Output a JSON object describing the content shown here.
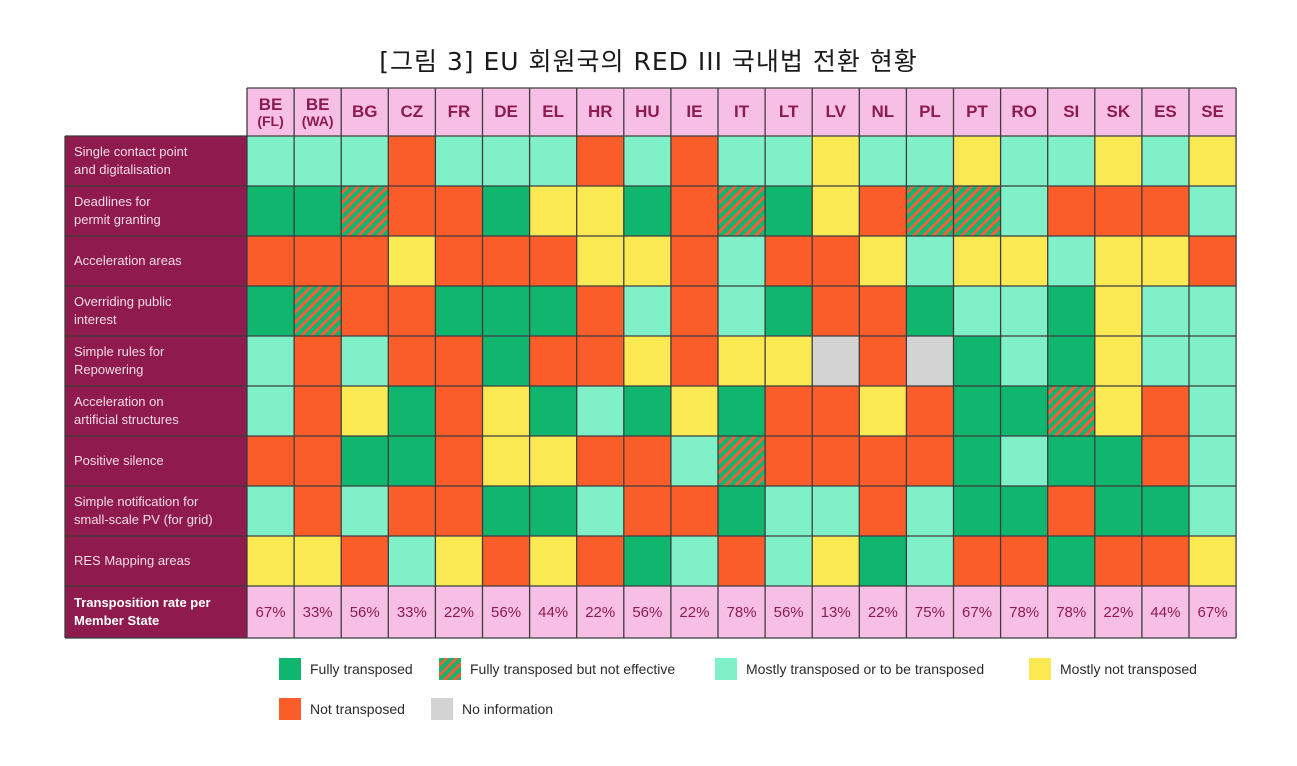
{
  "title": "[그림 3] EU 회원국의 RED III 국내법 전환 현황",
  "colors": {
    "F": "#10b56e",
    "H": "#10b56e",
    "M": "#7ff0c8",
    "Y": "#fbe954",
    "N": "#fa5c2a",
    "G": "#d3d3d3",
    "header_bg": "#f8bfe6",
    "header_text": "#8c1b50",
    "row_label_bg": "#8e1a4e",
    "border": "#3d3d3d"
  },
  "chart_data": {
    "type": "table",
    "title": "[그림 3] EU 회원국의 RED III 국내법 전환 현황",
    "columns": [
      {
        "code": "BE",
        "sub": "(FL)"
      },
      {
        "code": "BE",
        "sub": "(WA)"
      },
      {
        "code": "BG",
        "sub": ""
      },
      {
        "code": "CZ",
        "sub": ""
      },
      {
        "code": "FR",
        "sub": ""
      },
      {
        "code": "DE",
        "sub": ""
      },
      {
        "code": "EL",
        "sub": ""
      },
      {
        "code": "HR",
        "sub": ""
      },
      {
        "code": "HU",
        "sub": ""
      },
      {
        "code": "IE",
        "sub": ""
      },
      {
        "code": "IT",
        "sub": ""
      },
      {
        "code": "LT",
        "sub": ""
      },
      {
        "code": "LV",
        "sub": ""
      },
      {
        "code": "NL",
        "sub": ""
      },
      {
        "code": "PL",
        "sub": ""
      },
      {
        "code": "PT",
        "sub": ""
      },
      {
        "code": "RO",
        "sub": ""
      },
      {
        "code": "SI",
        "sub": ""
      },
      {
        "code": "SK",
        "sub": ""
      },
      {
        "code": "ES",
        "sub": ""
      },
      {
        "code": "SE",
        "sub": ""
      }
    ],
    "status_key": {
      "F": "Fully transposed",
      "H": "Fully transposed but not effective",
      "M": "Mostly transposed or to be transposed",
      "Y": "Mostly not transposed",
      "N": "Not transposed",
      "G": "No information"
    },
    "rows": [
      {
        "label": [
          "Single contact point",
          "and digitalisation"
        ],
        "status": [
          "M",
          "M",
          "M",
          "N",
          "M",
          "M",
          "M",
          "N",
          "M",
          "N",
          "M",
          "M",
          "Y",
          "M",
          "M",
          "Y",
          "M",
          "M",
          "Y",
          "M",
          "Y"
        ]
      },
      {
        "label": [
          "Deadlines for",
          "permit granting"
        ],
        "status": [
          "F",
          "F",
          "H",
          "N",
          "N",
          "F",
          "Y",
          "Y",
          "F",
          "N",
          "H",
          "F",
          "Y",
          "N",
          "H",
          "H",
          "M",
          "N",
          "N",
          "N",
          "M"
        ]
      },
      {
        "label": [
          "Acceleration areas"
        ],
        "status": [
          "N",
          "N",
          "N",
          "Y",
          "N",
          "N",
          "N",
          "Y",
          "Y",
          "N",
          "M",
          "N",
          "N",
          "Y",
          "M",
          "Y",
          "Y",
          "M",
          "Y",
          "Y",
          "N"
        ]
      },
      {
        "label": [
          "Overriding public",
          "interest"
        ],
        "status": [
          "F",
          "H",
          "N",
          "N",
          "F",
          "F",
          "F",
          "N",
          "M",
          "N",
          "M",
          "F",
          "N",
          "N",
          "F",
          "M",
          "M",
          "F",
          "Y",
          "M",
          "M"
        ]
      },
      {
        "label": [
          "Simple rules for",
          "Repowering"
        ],
        "status": [
          "M",
          "N",
          "M",
          "N",
          "N",
          "F",
          "N",
          "N",
          "Y",
          "N",
          "Y",
          "Y",
          "G",
          "N",
          "G",
          "F",
          "M",
          "F",
          "Y",
          "M",
          "M"
        ]
      },
      {
        "label": [
          "Acceleration on",
          "artificial structures"
        ],
        "status": [
          "M",
          "N",
          "Y",
          "F",
          "N",
          "Y",
          "F",
          "M",
          "F",
          "Y",
          "F",
          "N",
          "N",
          "Y",
          "N",
          "F",
          "F",
          "H",
          "Y",
          "N",
          "M"
        ]
      },
      {
        "label": [
          "Positive silence"
        ],
        "status": [
          "N",
          "N",
          "F",
          "F",
          "N",
          "Y",
          "Y",
          "N",
          "N",
          "M",
          "H",
          "N",
          "N",
          "N",
          "N",
          "F",
          "M",
          "F",
          "F",
          "N",
          "M"
        ]
      },
      {
        "label": [
          "Simple notification for",
          "small-scale PV (for grid)"
        ],
        "status": [
          "M",
          "N",
          "M",
          "N",
          "N",
          "F",
          "F",
          "M",
          "N",
          "N",
          "F",
          "M",
          "M",
          "N",
          "M",
          "F",
          "F",
          "N",
          "F",
          "F",
          "M"
        ]
      },
      {
        "label": [
          "RES Mapping areas"
        ],
        "status": [
          "Y",
          "Y",
          "N",
          "M",
          "Y",
          "N",
          "Y",
          "N",
          "F",
          "M",
          "N",
          "M",
          "Y",
          "F",
          "M",
          "N",
          "N",
          "F",
          "N",
          "N",
          "Y"
        ]
      }
    ],
    "total_label": [
      "Transposition rate per",
      "Member State"
    ],
    "rates": [
      "67%",
      "33%",
      "56%",
      "33%",
      "22%",
      "56%",
      "44%",
      "22%",
      "56%",
      "22%",
      "78%",
      "56%",
      "13%",
      "22%",
      "75%",
      "67%",
      "78%",
      "78%",
      "22%",
      "44%",
      "67%"
    ]
  },
  "legend": [
    {
      "key": "F",
      "label": "Fully transposed"
    },
    {
      "key": "H",
      "label": "Fully transposed but not effective"
    },
    {
      "key": "M",
      "label": "Mostly transposed or to be transposed"
    },
    {
      "key": "Y",
      "label": "Mostly not transposed"
    },
    {
      "key": "N",
      "label": "Not transposed"
    },
    {
      "key": "G",
      "label": "No information"
    }
  ]
}
